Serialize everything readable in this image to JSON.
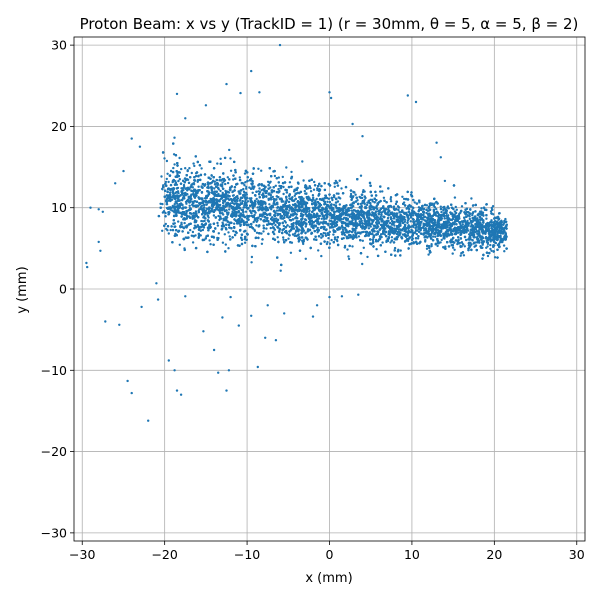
{
  "chart_data": {
    "type": "scatter",
    "title": "Proton Beam: x vs y (TrackID = 1) (r = 30mm, θ = 5, α = 5, β = 2)",
    "xlabel": "x (mm)",
    "ylabel": "y (mm)",
    "xlim": [
      -31,
      31
    ],
    "ylim": [
      -31,
      31
    ],
    "xticks": [
      -30,
      -20,
      -10,
      0,
      10,
      20,
      30
    ],
    "yticks": [
      -30,
      -20,
      -10,
      0,
      10,
      20,
      30
    ],
    "xtick_labels": [
      "−30",
      "−20",
      "−10",
      "0",
      "10",
      "20",
      "30"
    ],
    "ytick_labels": [
      "−30",
      "−20",
      "−10",
      "0",
      "10",
      "20",
      "30"
    ],
    "grid": true,
    "point_color": "#1f77b4",
    "series": [
      {
        "distribution": {
          "x_range": [
            -20,
            21.5
          ],
          "y_center_at_x_min": 11,
          "y_center_at_x_max": 7,
          "y_spread_at_x_min": 3.2,
          "y_spread_at_x_max": 1.5,
          "dense_point_count": 9000
        },
        "outliers": [
          [
            -29.5,
            3.2
          ],
          [
            -29.4,
            2.7
          ],
          [
            -28.0,
            5.8
          ],
          [
            -27.8,
            4.7
          ],
          [
            -27.2,
            -4.0
          ],
          [
            -25.5,
            -4.4
          ],
          [
            -24.5,
            -11.3
          ],
          [
            -24.0,
            -12.8
          ],
          [
            -22.8,
            -2.2
          ],
          [
            -22.0,
            -16.2
          ],
          [
            -21.0,
            0.7
          ],
          [
            -20.8,
            -1.3
          ],
          [
            -19.5,
            -8.8
          ],
          [
            -18.8,
            -10.0
          ],
          [
            -18.5,
            -12.5
          ],
          [
            -18.0,
            -13.0
          ],
          [
            -17.5,
            -0.9
          ],
          [
            -15.3,
            -5.2
          ],
          [
            -14.0,
            -7.5
          ],
          [
            -13.5,
            -10.3
          ],
          [
            -13.0,
            -3.5
          ],
          [
            -12.5,
            -12.5
          ],
          [
            -12.2,
            -10.0
          ],
          [
            -12.0,
            -1.0
          ],
          [
            -11.0,
            -4.5
          ],
          [
            -9.5,
            -3.3
          ],
          [
            -8.7,
            -9.6
          ],
          [
            -7.8,
            -6.0
          ],
          [
            -7.5,
            -2.0
          ],
          [
            -6.5,
            -6.3
          ],
          [
            -5.5,
            -3.0
          ],
          [
            -2.0,
            -3.4
          ],
          [
            -1.5,
            -2.0
          ],
          [
            0.0,
            -1.0
          ],
          [
            1.5,
            -0.9
          ],
          [
            3.5,
            -0.7
          ],
          [
            -6.0,
            30.0
          ],
          [
            -9.5,
            26.8
          ],
          [
            -8.5,
            24.2
          ],
          [
            -12.5,
            25.2
          ],
          [
            -10.8,
            24.1
          ],
          [
            -18.5,
            24.0
          ],
          [
            -15.0,
            22.6
          ],
          [
            -17.5,
            21.0
          ],
          [
            0.0,
            24.2
          ],
          [
            0.2,
            23.5
          ],
          [
            9.5,
            23.8
          ],
          [
            10.5,
            23.0
          ],
          [
            2.8,
            20.3
          ],
          [
            4.0,
            18.8
          ],
          [
            13.0,
            18.0
          ],
          [
            13.5,
            16.2
          ],
          [
            14.0,
            13.3
          ],
          [
            -23.0,
            17.5
          ],
          [
            -24.0,
            18.5
          ],
          [
            -25.0,
            14.5
          ],
          [
            -26.0,
            13.0
          ],
          [
            -27.5,
            9.5
          ],
          [
            -28.0,
            9.8
          ],
          [
            -29.0,
            10.0
          ]
        ]
      }
    ]
  }
}
